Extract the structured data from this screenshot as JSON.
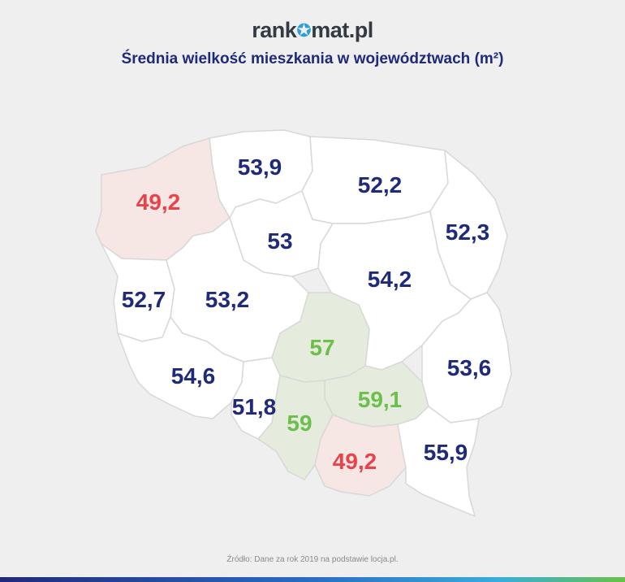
{
  "header": {
    "logo_left": "rank",
    "logo_right": "mat.pl",
    "logo_icon": "star-icon",
    "title": "Średnia wielkość mieszkania w województwach (m²)"
  },
  "colors": {
    "blue_text": "#1f2a78",
    "red_text": "#e8434a",
    "green_text": "#6cbf4a",
    "white_region": "#ffffff",
    "red_region": "#f6e6e4",
    "green_region": "#e5ecdd"
  },
  "regions": [
    {
      "name": "zachodniopomorskie",
      "value": "49,2",
      "highlight": "low"
    },
    {
      "name": "pomorskie",
      "value": "53,9",
      "highlight": "none"
    },
    {
      "name": "warmińsko-mazurskie",
      "value": "52,2",
      "highlight": "none"
    },
    {
      "name": "podlaskie",
      "value": "52,3",
      "highlight": "none"
    },
    {
      "name": "kujawsko-pomorskie",
      "value": "53",
      "highlight": "none"
    },
    {
      "name": "mazowieckie",
      "value": "54,2",
      "highlight": "none"
    },
    {
      "name": "lubuskie",
      "value": "52,7",
      "highlight": "none"
    },
    {
      "name": "wielkopolskie",
      "value": "53,2",
      "highlight": "none"
    },
    {
      "name": "łódzkie",
      "value": "57",
      "highlight": "high"
    },
    {
      "name": "lubelskie",
      "value": "53,6",
      "highlight": "none"
    },
    {
      "name": "dolnośląskie",
      "value": "54,6",
      "highlight": "none"
    },
    {
      "name": "opolskie",
      "value": "51,8",
      "highlight": "none"
    },
    {
      "name": "świętokrzyskie",
      "value": "59,1",
      "highlight": "high"
    },
    {
      "name": "śląskie",
      "value": "59",
      "highlight": "high"
    },
    {
      "name": "małopolskie",
      "value": "49,2",
      "highlight": "low"
    },
    {
      "name": "podkarpackie",
      "value": "55,9",
      "highlight": "none"
    }
  ],
  "footer": {
    "source": "Źródło: Dane za rok 2019 na podstawie locja.pl."
  }
}
